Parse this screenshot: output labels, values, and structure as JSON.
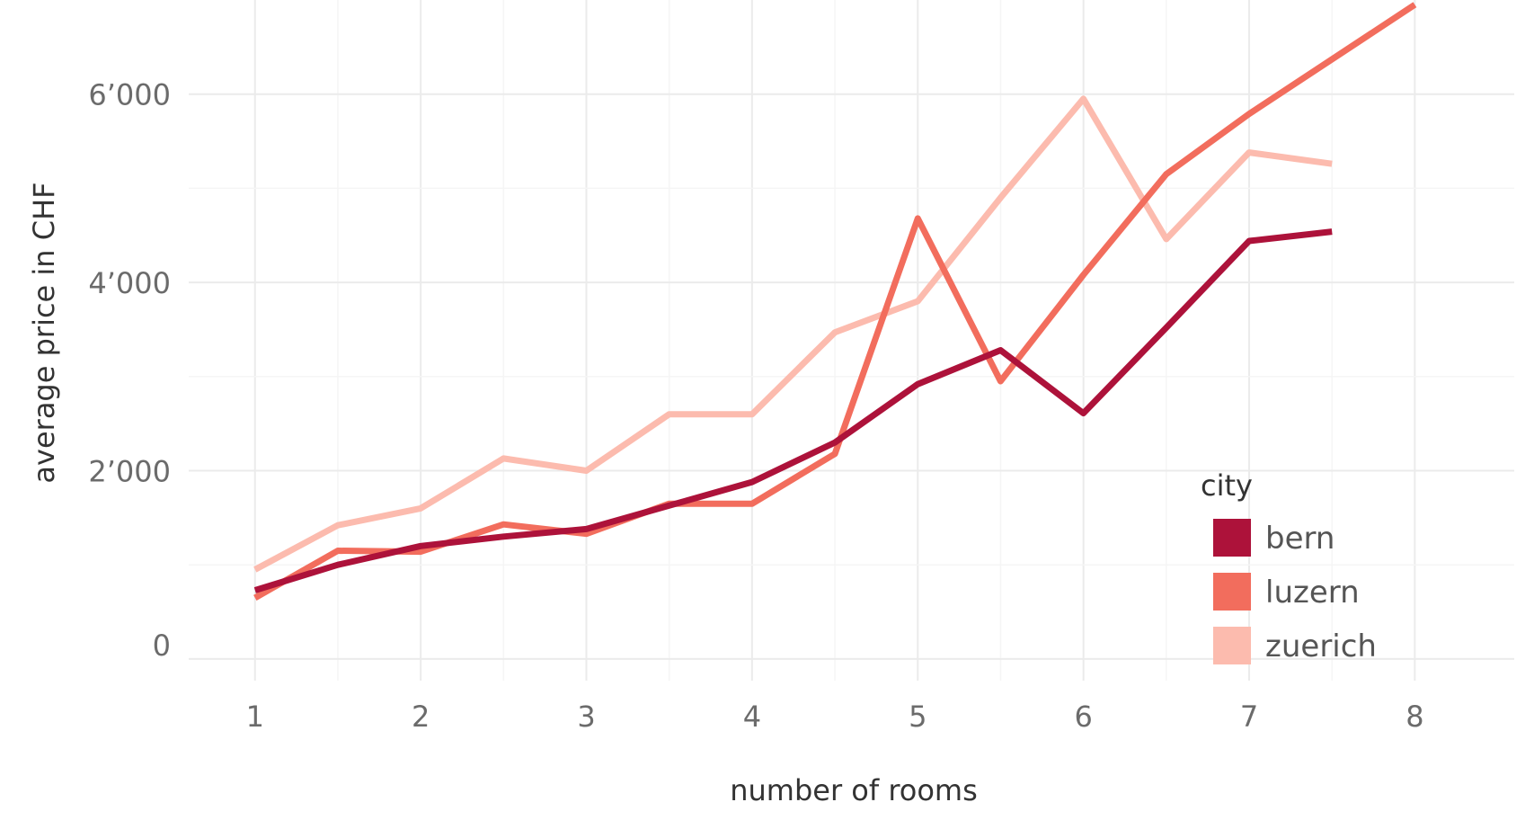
{
  "chart_data": {
    "type": "line",
    "title": "",
    "xlabel": "number of rooms",
    "ylabel": "average price in CHF",
    "xlim": [
      0.6,
      8.6
    ],
    "ylim": [
      -230,
      7000
    ],
    "x_ticks": [
      1,
      2,
      3,
      4,
      5,
      6,
      7,
      8
    ],
    "x_tick_labels": [
      "1",
      "2",
      "3",
      "4",
      "5",
      "6",
      "7",
      "8"
    ],
    "y_ticks": [
      0,
      2000,
      4000,
      6000
    ],
    "y_tick_labels": [
      "0",
      "2’000",
      "4’000",
      "6’000"
    ],
    "grid": true,
    "legend": {
      "title": "city",
      "position": "bottom-right"
    },
    "series": [
      {
        "name": "zuerich",
        "color": "#fcbbae",
        "x": [
          1,
          1.5,
          2,
          2.5,
          3,
          3.5,
          4,
          4.5,
          5,
          5.5,
          6,
          6.5,
          7,
          7.5
        ],
        "y": [
          950,
          1420,
          1600,
          2130,
          2000,
          2600,
          2600,
          3470,
          3800,
          4900,
          5950,
          4460,
          5380,
          5260
        ]
      },
      {
        "name": "luzern",
        "color": "#f26d5d",
        "x": [
          1,
          1.5,
          2,
          2.5,
          3,
          3.5,
          4,
          4.5,
          5,
          5.5,
          6,
          6.5,
          7,
          8
        ],
        "y": [
          650,
          1150,
          1140,
          1430,
          1330,
          1650,
          1650,
          2180,
          4680,
          2950,
          4080,
          5150,
          5790,
          6950
        ]
      },
      {
        "name": "bern",
        "color": "#ad123a",
        "x": [
          1,
          1.5,
          2,
          2.5,
          3,
          3.5,
          4,
          4.5,
          5,
          5.5,
          6,
          6.5,
          7,
          7.5
        ],
        "y": [
          730,
          1000,
          1200,
          1300,
          1380,
          1630,
          1880,
          2300,
          2920,
          3280,
          2610,
          3520,
          4440,
          4540
        ]
      }
    ],
    "legend_order": [
      "bern",
      "luzern",
      "zuerich"
    ]
  }
}
